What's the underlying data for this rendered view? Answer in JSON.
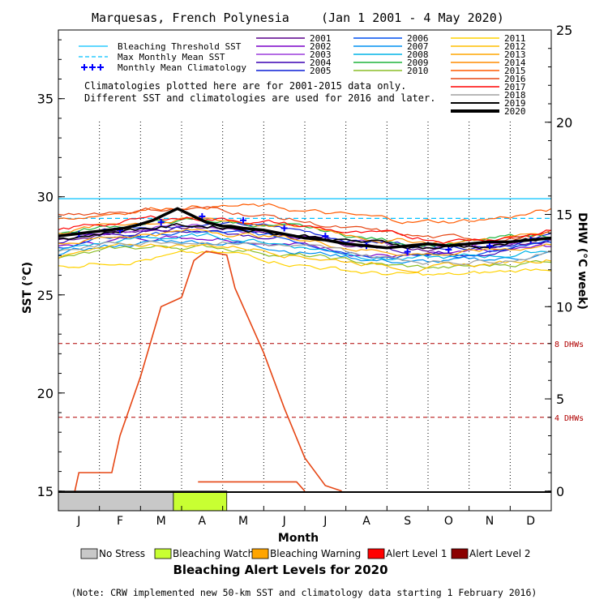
{
  "chart_data": {
    "type": "line",
    "title_left": "Marquesas, French Polynesia",
    "title_right": "(Jan 1 2001 - 4 May 2020)",
    "xlabel": "Month",
    "ylabel_left": "SST (°C)",
    "ylabel_right": "DHW (°C week)",
    "x_ticks": [
      "J",
      "F",
      "M",
      "A",
      "M",
      "J",
      "J",
      "A",
      "S",
      "O",
      "N",
      "D"
    ],
    "y_left": {
      "min": 14,
      "max": 38.5,
      "ticks": [
        15,
        20,
        25,
        30,
        35
      ]
    },
    "y_right": {
      "min": 0,
      "max": 25,
      "ticks": [
        0,
        5,
        10,
        15,
        20,
        25
      ]
    },
    "thresholds": {
      "bleaching_threshold_sst": 29.9,
      "max_monthly_mean_sst": 28.9
    },
    "dhw_lines": [
      {
        "label": "8 DHWs",
        "value": 8
      },
      {
        "label": "4 DHWs",
        "value": 4
      }
    ],
    "legend_refs": [
      {
        "label": "Bleaching Threshold SST",
        "color": "#00c0ff",
        "style": "solid"
      },
      {
        "label": "Max Monthly Mean SST",
        "color": "#00c0ff",
        "style": "dashed"
      },
      {
        "label": "Monthly Mean Climatology",
        "color": "#0000ff",
        "style": "plus"
      }
    ],
    "years": [
      {
        "name": "2001",
        "color": "#5a008c"
      },
      {
        "name": "2002",
        "color": "#7a00c8"
      },
      {
        "name": "2003",
        "color": "#9c3cdc"
      },
      {
        "name": "2004",
        "color": "#3a00b4"
      },
      {
        "name": "2005",
        "color": "#0a1fd6"
      },
      {
        "name": "2006",
        "color": "#0050f0"
      },
      {
        "name": "2007",
        "color": "#0090f0"
      },
      {
        "name": "2008",
        "color": "#00b4e6"
      },
      {
        "name": "2009",
        "color": "#1eb43c"
      },
      {
        "name": "2010",
        "color": "#8cbe28"
      },
      {
        "name": "2011",
        "color": "#ffd200"
      },
      {
        "name": "2012",
        "color": "#ffbe00"
      },
      {
        "name": "2013",
        "color": "#ffa500"
      },
      {
        "name": "2014",
        "color": "#ff8c00"
      },
      {
        "name": "2015",
        "color": "#ff5a00"
      },
      {
        "name": "2016",
        "color": "#e64614"
      },
      {
        "name": "2017",
        "color": "#ff0000"
      },
      {
        "name": "2018",
        "color": "#a0a0a0"
      },
      {
        "name": "2019",
        "color": "#000000"
      },
      {
        "name": "2020",
        "color": "#000000"
      }
    ],
    "climatology_month_means": [
      28.1,
      28.3,
      28.7,
      29.0,
      28.8,
      28.4,
      28.0,
      27.5,
      27.2,
      27.3,
      27.5,
      27.8
    ],
    "series_2020_sst": {
      "x_months": [
        0.0,
        0.4,
        0.8,
        1.2,
        1.6,
        2.0,
        2.3,
        2.6,
        2.9,
        3.0,
        3.2,
        3.4,
        3.5,
        3.6,
        3.8,
        4.0,
        4.2,
        4.5,
        5.0,
        5.5,
        6.0,
        6.5,
        7.0,
        7.5,
        8.0,
        8.5,
        9.0,
        9.5,
        10.0,
        10.5,
        11.0,
        11.5,
        12.0
      ],
      "values": [
        28.0,
        28.1,
        28.2,
        28.3,
        28.4,
        28.6,
        28.8,
        29.1,
        29.4,
        29.3,
        29.1,
        28.9,
        28.8,
        28.7,
        28.6,
        28.5,
        28.5,
        28.4,
        28.3,
        28.1,
        27.9,
        27.8,
        27.6,
        27.5,
        27.4,
        27.5,
        27.6,
        27.5,
        27.6,
        27.7,
        27.7,
        27.8,
        27.9
      ]
    },
    "series_dhw_2020": {
      "x_months": [
        0.4,
        0.5,
        1.3,
        1.5,
        2.0,
        2.5,
        3.0,
        3.3,
        3.6,
        4.1,
        4.3,
        4.6,
        5.0,
        5.5,
        6.0,
        6.5,
        6.9
      ],
      "values": [
        0,
        1.0,
        1.0,
        3.0,
        6.2,
        10.0,
        10.5,
        12.5,
        13.0,
        12.8,
        11.0,
        9.5,
        7.5,
        4.5,
        1.8,
        0.3,
        0
      ]
    },
    "alert_bar": [
      {
        "level": "No Stress",
        "from_month": 0,
        "to_month": 2.8
      },
      {
        "level": "Bleaching Watch",
        "from_month": 2.8,
        "to_month": 4.1
      }
    ],
    "alert_legend": [
      {
        "label": "No Stress",
        "color": "#c8c8c8"
      },
      {
        "label": "Bleaching Watch",
        "color": "#c8ff32"
      },
      {
        "label": "Bleaching Warning",
        "color": "#ffa500"
      },
      {
        "label": "Alert Level 1",
        "color": "#ff0000"
      },
      {
        "label": "Alert Level 2",
        "color": "#8b0000"
      }
    ],
    "alert_title": "Bleaching Alert Levels for 2020",
    "note_climatology": [
      "Climatologies plotted here are for 2001-2015 data only.",
      "Different SST and climatologies are used for 2016 and later."
    ],
    "footnote": "(Note: CRW implemented new 50-km SST and climatology data starting 1 February 2016)"
  }
}
